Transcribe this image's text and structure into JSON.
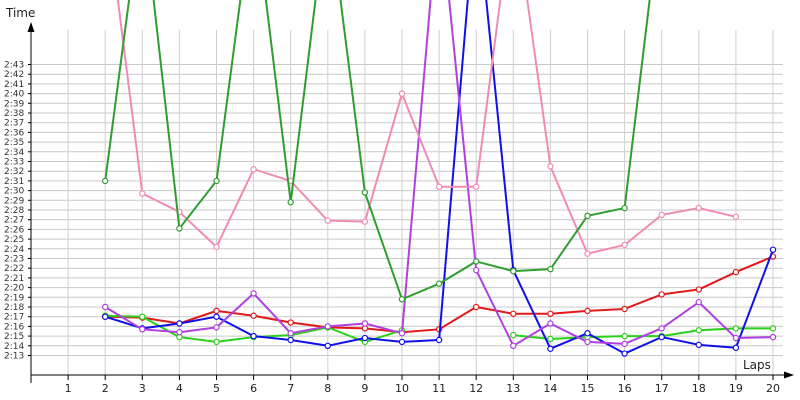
{
  "chart_data": {
    "type": "line",
    "ylabel": "Time",
    "xlabel": "Laps",
    "y_unit": "seconds",
    "ylim": [
      792,
      824
    ],
    "xlim": [
      0,
      20
    ],
    "grid": true,
    "x": [
      1,
      2,
      3,
      4,
      5,
      6,
      7,
      8,
      9,
      10,
      11,
      12,
      13,
      14,
      15,
      16,
      17,
      18,
      19,
      20
    ],
    "y_ticks": [
      "2:13",
      "2:14",
      "2:15",
      "2:16",
      "2:17",
      "2:18",
      "2:19",
      "2:20",
      "2:21",
      "2:22",
      "2:23",
      "2:24",
      "2:25",
      "2:26",
      "2:27",
      "2:28",
      "2:29",
      "2:30",
      "2:31",
      "2:32",
      "2:33",
      "2:34",
      "2:35",
      "2:36",
      "2:37",
      "2:38",
      "2:39",
      "2:40",
      "2:41",
      "2:42",
      "2:43"
    ],
    "x_ticks": [
      "1",
      "2",
      "3",
      "4",
      "5",
      "6",
      "7",
      "8",
      "9",
      "10",
      "11",
      "12",
      "13",
      "14",
      "15",
      "16",
      "17",
      "18",
      "19",
      "20"
    ],
    "series": [
      {
        "color": "#e0191b",
        "values": [
          null,
          137.0,
          136.9,
          136.3,
          137.6,
          137.1,
          136.4,
          135.9,
          135.8,
          135.4,
          135.7,
          138.0,
          137.3,
          137.3,
          137.6,
          137.8,
          139.3,
          139.8,
          141.6,
          143.2
        ]
      },
      {
        "color": "#2ad01a",
        "values": [
          null,
          137.1,
          137.0,
          134.9,
          134.4,
          134.9,
          135.1,
          135.9,
          134.4,
          135.6,
          null,
          null,
          135.1,
          134.7,
          134.9,
          135.0,
          135.0,
          135.6,
          135.8,
          135.8
        ]
      },
      {
        "color": "#1010e8",
        "values": [
          null,
          137.0,
          135.8,
          136.3,
          137.0,
          135.0,
          134.6,
          134.0,
          134.8,
          134.4,
          134.6,
          180.0,
          141.8,
          133.7,
          135.3,
          133.2,
          134.9,
          134.1,
          133.8,
          143.9
        ]
      },
      {
        "color": "#b040e0",
        "values": [
          null,
          138.0,
          135.7,
          135.4,
          135.9,
          139.4,
          135.3,
          136.0,
          136.3,
          135.3,
          180.0,
          141.8,
          134.0,
          136.3,
          134.4,
          134.2,
          135.8,
          138.5,
          134.8,
          134.9
        ]
      },
      {
        "color": "#f08cb4",
        "values": [
          null,
          180.0,
          149.7,
          147.8,
          144.2,
          152.2,
          151.0,
          146.9,
          146.8,
          160.0,
          150.4,
          150.4,
          180.0,
          152.5,
          143.5,
          144.4,
          147.5,
          148.2,
          147.3,
          null
        ]
      },
      {
        "color": "#2e9e2e",
        "values": [
          null,
          151.0,
          180.0,
          146.1,
          151.0,
          180.0,
          148.8,
          180.0,
          149.8,
          138.8,
          140.4,
          142.7,
          141.7,
          141.9,
          147.4,
          148.2,
          180.0,
          null,
          null,
          null
        ]
      }
    ]
  }
}
